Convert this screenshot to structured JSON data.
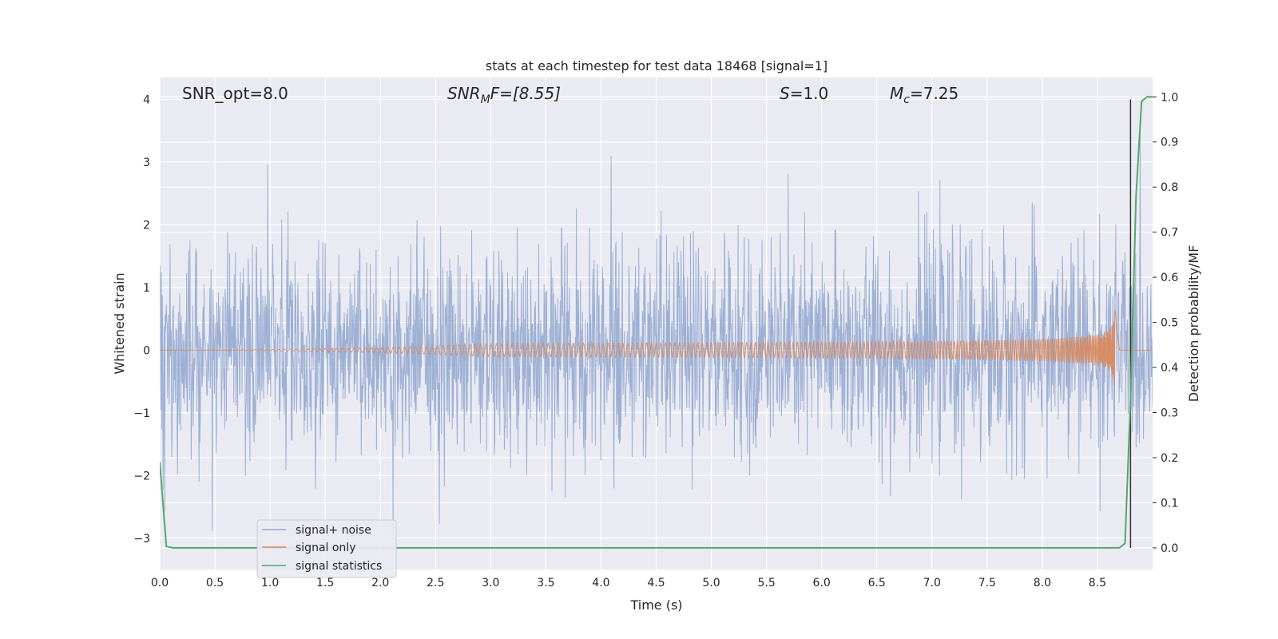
{
  "chart_data": {
    "type": "line",
    "title": "stats at each timestep for test data 18468 [signal=1]",
    "xlabel": "Time (s)",
    "ylabel": "Whitened strain",
    "ylabel_right": "Detection probability/MF",
    "xlim": [
      0.0,
      9.0
    ],
    "ylim": [
      -3.5,
      4.35
    ],
    "ylim_right": [
      -0.048,
      1.043
    ],
    "x_ticks": [
      "0.0",
      "0.5",
      "1.0",
      "1.5",
      "2.0",
      "2.5",
      "3.0",
      "3.5",
      "4.0",
      "4.5",
      "5.0",
      "5.5",
      "6.0",
      "6.5",
      "7.0",
      "7.5",
      "8.0",
      "8.5"
    ],
    "x_tick_values": [
      0.0,
      0.5,
      1.0,
      1.5,
      2.0,
      2.5,
      3.0,
      3.5,
      4.0,
      4.5,
      5.0,
      5.5,
      6.0,
      6.5,
      7.0,
      7.5,
      8.0,
      8.5
    ],
    "y_ticks": [
      "−3",
      "−2",
      "−1",
      "0",
      "1",
      "2",
      "3",
      "4"
    ],
    "y_tick_values": [
      -3,
      -2,
      -1,
      0,
      1,
      2,
      3,
      4
    ],
    "y_right_ticks": [
      "0.0",
      "0.1",
      "0.2",
      "0.3",
      "0.4",
      "0.5",
      "0.6",
      "0.7",
      "0.8",
      "0.9",
      "1.0"
    ],
    "y_right_tick_values": [
      0.0,
      0.1,
      0.2,
      0.3,
      0.4,
      0.5,
      0.6,
      0.7,
      0.8,
      0.9,
      1.0
    ],
    "grid": true,
    "legend_position": "lower-left",
    "annotations": {
      "snr_opt": "SNR_opt=8.0",
      "snr_mf_sym": "SNR",
      "snr_mf_sub": "M",
      "snr_mf_rest": "F=[8.55]",
      "s_sym": "S",
      "s_rest": "=1.0",
      "mc_sym": "M",
      "mc_sub": "c",
      "mc_rest": "=7.25"
    },
    "marker_line_x": 8.8,
    "series": [
      {
        "name": "signal+ noise",
        "color": "#8fa6cf",
        "axis": "left",
        "description_values": {
          "noise_std": 0.85,
          "x_range": [
            0.0,
            9.0
          ]
        }
      },
      {
        "name": "signal only",
        "color": "#dd8452",
        "axis": "left",
        "peak_x": 8.66,
        "peak_amplitude": 0.65,
        "x_range": [
          0.0,
          8.7
        ]
      },
      {
        "name": "signal statistics",
        "color": "#55a868",
        "axis": "right",
        "x": [
          0.0,
          0.06,
          0.12,
          0.5,
          1.0,
          2.0,
          3.0,
          4.0,
          5.0,
          6.0,
          7.0,
          8.0,
          8.5,
          8.7,
          8.75,
          8.8,
          8.85,
          8.9,
          8.95,
          9.0
        ],
        "y": [
          0.19,
          0.003,
          0.0,
          0.0,
          0.0,
          0.0,
          0.0,
          0.0,
          0.0,
          0.0,
          0.0,
          0.0,
          0.0,
          0.0,
          0.01,
          0.33,
          0.78,
          0.99,
          1.0,
          1.0
        ]
      }
    ]
  }
}
